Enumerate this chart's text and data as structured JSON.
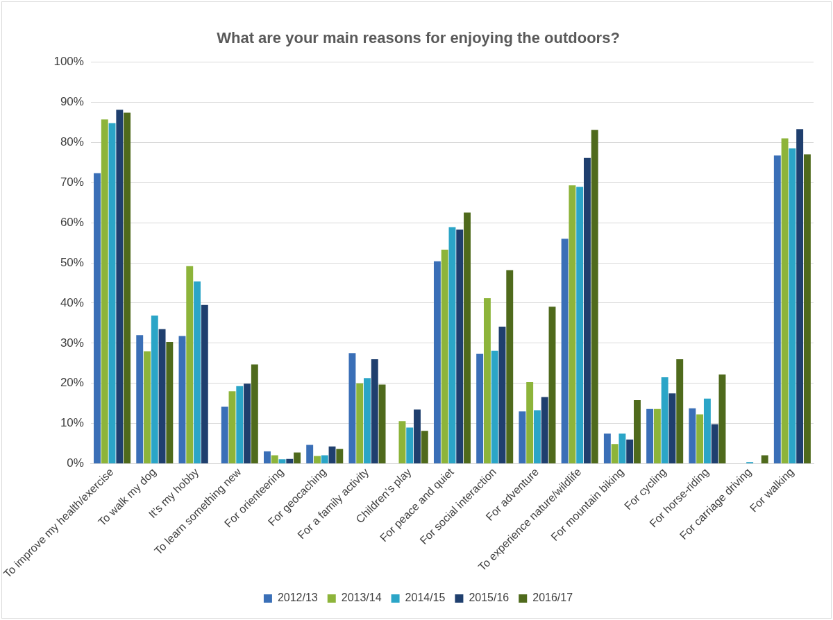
{
  "chart_data": {
    "type": "bar",
    "title": "What are your main reasons for enjoying the outdoors?",
    "categories": [
      "To improve my health/exercise",
      "To walk my dog",
      "It’s my hobby",
      "To learn something new",
      "For orienteering",
      "For geocaching",
      "For a family activity",
      "Children’s play",
      "For peace and quiet",
      "For social interaction",
      "For adventure",
      "To experience nature/wildlife",
      "For mountain biking",
      "For cycling",
      "For horse-riding",
      "For carriage driving",
      "For walking"
    ],
    "series": [
      {
        "name": "2012/13",
        "color": "#3a6fb7",
        "values": [
          72.3,
          32,
          31.8,
          14.2,
          3.1,
          4.7,
          27.5,
          null,
          50.4,
          27.4,
          13,
          56,
          7.5,
          13.6,
          13.8,
          null,
          76.7
        ]
      },
      {
        "name": "2013/14",
        "color": "#8db43a",
        "values": [
          85.7,
          28,
          49.2,
          18,
          2.1,
          1.9,
          20,
          10.6,
          53.3,
          41.2,
          20.3,
          69.3,
          4.9,
          13.6,
          12.3,
          null,
          81
        ]
      },
      {
        "name": "2014/15",
        "color": "#2ba5c7",
        "values": [
          84.8,
          36.9,
          45.4,
          19.3,
          1.1,
          2.1,
          21.3,
          9,
          58.9,
          28.1,
          13.3,
          68.9,
          7.5,
          21.5,
          16.2,
          0.4,
          78.5
        ]
      },
      {
        "name": "2015/16",
        "color": "#1f3f6e",
        "values": [
          88.1,
          33.5,
          39.5,
          19.9,
          1.2,
          4.3,
          26,
          13.5,
          58.3,
          34.1,
          16.6,
          76.1,
          6,
          17.5,
          9.8,
          null,
          83.3
        ]
      },
      {
        "name": "2016/17",
        "color": "#4f6a1c",
        "values": [
          87.4,
          30.3,
          null,
          24.7,
          2.8,
          3.7,
          19.7,
          8.2,
          62.5,
          48.2,
          39.1,
          83.1,
          15.8,
          26,
          22.2,
          2.1,
          77
        ]
      }
    ],
    "ylim": [
      0,
      100
    ],
    "yticks": [
      {
        "value": 0,
        "label": "0%"
      },
      {
        "value": 10,
        "label": "10%"
      },
      {
        "value": 20,
        "label": "20%"
      },
      {
        "value": 30,
        "label": "30%"
      },
      {
        "value": 40,
        "label": "40%"
      },
      {
        "value": 50,
        "label": "50%"
      },
      {
        "value": 60,
        "label": "60%"
      },
      {
        "value": 70,
        "label": "70%"
      },
      {
        "value": 80,
        "label": "80%"
      },
      {
        "value": 90,
        "label": "90%"
      },
      {
        "value": 100,
        "label": "100%"
      }
    ],
    "grid": "y",
    "legend": "bottom"
  }
}
